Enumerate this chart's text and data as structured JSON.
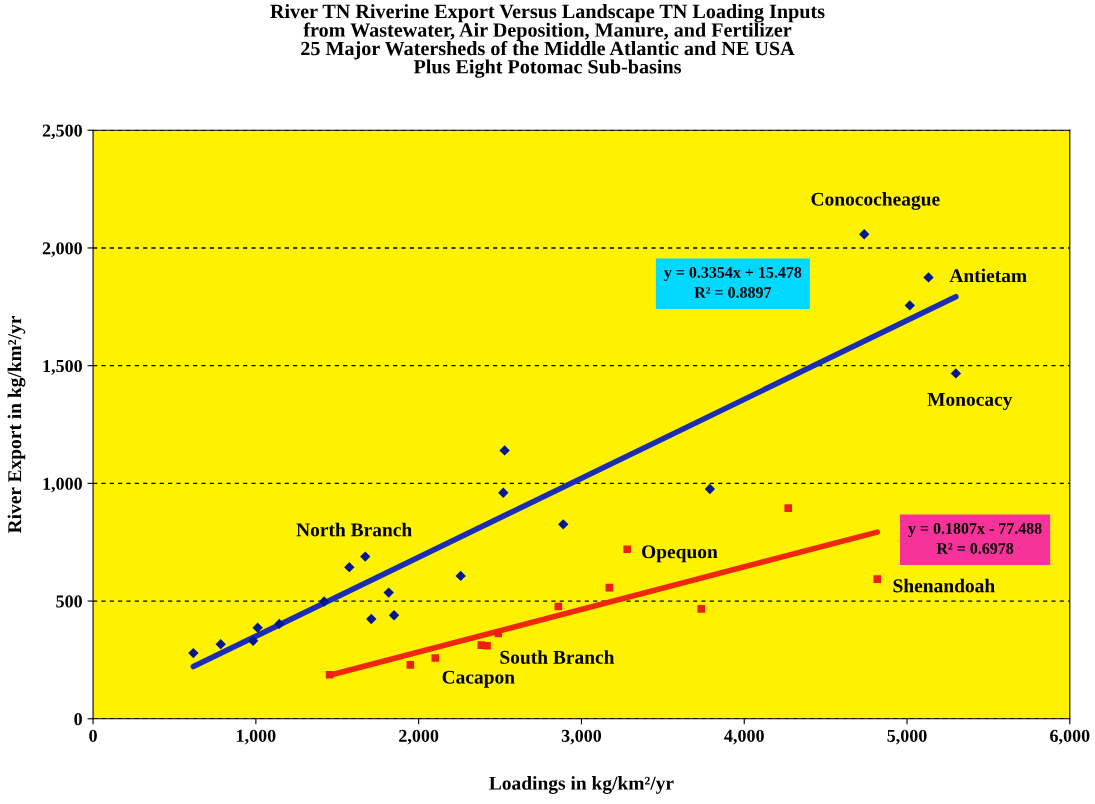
{
  "chart_data": {
    "type": "scatter",
    "title": "River TN Riverine Export Versus Landscape TN Loading Inputs\nfrom Wastewater, Air Deposition, Manure, and Fertilizer\n25 Major Watersheds of the Middle Atlantic and NE USA\nPlus Eight Potomac Sub-basins",
    "xlabel": "Loadings in kg/km²/yr",
    "ylabel": "River Export in kg/km²/yr",
    "series": [
      {
        "marker": "diamond",
        "color": "#00188f",
        "x": [
          616,
          784,
          983,
          1011,
          1144,
          1419,
          1574,
          1672,
          1709,
          1816,
          1849,
          2258,
          2520,
          2528,
          2888,
          3789,
          4737,
          5132,
          5017,
          5300
        ],
        "values": [
          279,
          317,
          331,
          387,
          403,
          498,
          644,
          689,
          424,
          536,
          440,
          607,
          960,
          1140,
          826,
          976,
          2058,
          1875,
          1756,
          1467
        ]
      },
      {
        "marker": "square",
        "color": "#ee2011",
        "x": [
          1453,
          1949,
          2102,
          2385,
          2420,
          2489,
          2858,
          3171,
          3281,
          3736,
          4270,
          4817
        ],
        "values": [
          187,
          229,
          258,
          313,
          310,
          362,
          477,
          557,
          720,
          467,
          895,
          593
        ]
      },
      {
        "type": "line",
        "color": "#1a2db5",
        "x": [
          616,
          5300
        ],
        "values": [
          222,
          1793
        ]
      },
      {
        "type": "line",
        "color": "#f0280a",
        "x": [
          1453,
          4817
        ],
        "values": [
          185,
          793
        ]
      }
    ],
    "annotations": [
      {
        "text": "Conococheague",
        "x": 4737,
        "y": 2058
      },
      {
        "text": "Antietam",
        "x": 5132,
        "y": 1875
      },
      {
        "text": "Monocacy",
        "x": 5300,
        "y": 1467
      },
      {
        "text": "North Branch",
        "x": 1672,
        "y": 689
      },
      {
        "text": "Opequon",
        "x": 3281,
        "y": 720
      },
      {
        "text": "Shenandoah",
        "x": 4817,
        "y": 593
      },
      {
        "text": "South Branch",
        "x": 2385,
        "y": 313
      },
      {
        "text": "Cacapon",
        "x": 2102,
        "y": 258
      },
      "y = 0.3354x + 15.478\nR² = 0.8897",
      "y = 0.1807x - 77.488\nR² = 0.6978"
    ],
    "xlim": [
      0,
      6000
    ],
    "xticks": [
      {
        "value": 0,
        "label": "0"
      },
      {
        "value": 1000,
        "label": "1,000"
      },
      {
        "value": 2000,
        "label": "2,000"
      },
      {
        "value": 3000,
        "label": "3,000"
      },
      {
        "value": 4000,
        "label": "4,000"
      },
      {
        "value": 5000,
        "label": "5,000"
      },
      {
        "value": 6000,
        "label": "6,000"
      }
    ],
    "ylim": [
      0,
      2500
    ],
    "yticks": [
      {
        "value": 0,
        "label": "0"
      },
      {
        "value": 500,
        "label": "500"
      },
      {
        "value": 1000,
        "label": "1,000"
      },
      {
        "value": 1500,
        "label": "1,500"
      },
      {
        "value": 2000,
        "label": "2,000"
      },
      {
        "value": 2500,
        "label": "2,500"
      }
    ],
    "grid": "y",
    "legend": false
  }
}
